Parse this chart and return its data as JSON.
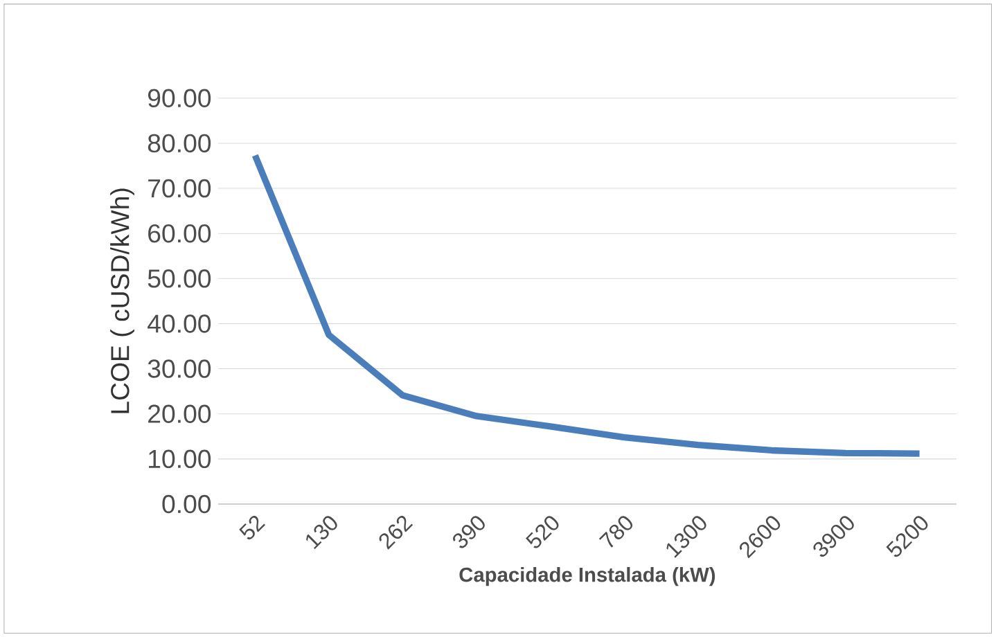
{
  "chart_data": {
    "type": "line",
    "xlabel": "Capacidade Instalada (kW)",
    "ylabel": "LCOE ( cUSD/kWh)",
    "categories": [
      "52",
      "130",
      "262",
      "390",
      "520",
      "780",
      "1300",
      "2600",
      "3900",
      "5200"
    ],
    "values": [
      77.3,
      37.5,
      24.1,
      19.5,
      17.2,
      14.8,
      13.1,
      11.9,
      11.3,
      11.2
    ],
    "color": "#4a7ebb",
    "ylim": [
      0,
      90
    ],
    "yticks": [
      {
        "value": 0,
        "label": "0.00"
      },
      {
        "value": 10,
        "label": "10.00"
      },
      {
        "value": 20,
        "label": "20.00"
      },
      {
        "value": 30,
        "label": "30.00"
      },
      {
        "value": 40,
        "label": "40.00"
      },
      {
        "value": 50,
        "label": "50.00"
      },
      {
        "value": 60,
        "label": "60.00"
      },
      {
        "value": 70,
        "label": "70.00"
      },
      {
        "value": 80,
        "label": "80.00"
      },
      {
        "value": 90,
        "label": "90.00"
      }
    ],
    "grid": "y",
    "marker": "none",
    "line_style": "solid"
  }
}
